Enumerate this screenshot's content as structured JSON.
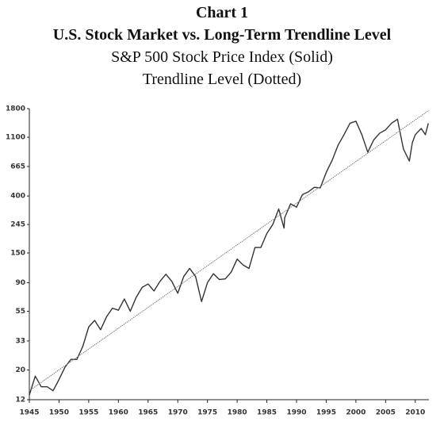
{
  "chart_data": {
    "type": "line",
    "title": "Chart 1",
    "subtitle": [
      "U.S. Stock Market vs. Long-Term Trendline Level",
      "S&P 500 Stock Price Index (Solid)",
      "Trendline Level (Dotted)"
    ],
    "log_scale": true,
    "grid": false,
    "xlim": [
      1945,
      2012.3
    ],
    "xticks": [
      1945,
      1950,
      1955,
      1960,
      1965,
      1970,
      1975,
      1980,
      1985,
      1990,
      1995,
      2000,
      2005,
      2010
    ],
    "ylim": [
      12,
      1800
    ],
    "yticks": [
      12,
      20,
      33,
      55,
      90,
      150,
      245,
      400,
      665,
      1100,
      1800
    ],
    "series": [
      {
        "name": "S&P 500 Stock Price Index",
        "color": "#333333",
        "style": "solid",
        "x": [
          1945,
          1946,
          1947,
          1948,
          1949,
          1950,
          1951,
          1952,
          1953,
          1954,
          1955,
          1956,
          1957,
          1958,
          1959,
          1960,
          1961,
          1962,
          1963,
          1964,
          1965,
          1966,
          1967,
          1968,
          1969,
          1970,
          1971,
          1972,
          1973,
          1974,
          1975,
          1976,
          1977,
          1978,
          1979,
          1980,
          1981,
          1982,
          1983,
          1984,
          1985,
          1986,
          1987,
          1987.9,
          1988,
          1989,
          1990,
          1991,
          1992,
          1993,
          1994,
          1995,
          1996,
          1997,
          1998,
          1999,
          2000,
          2001,
          2002,
          2003,
          2004,
          2005,
          2006,
          2007,
          2008,
          2009,
          2009.5,
          2010,
          2011,
          2011.7,
          2012.2
        ],
        "values": [
          13,
          18,
          15,
          15,
          14,
          17,
          21,
          24,
          24,
          30,
          42,
          47,
          40,
          50,
          58,
          56,
          68,
          55,
          70,
          83,
          88,
          78,
          92,
          104,
          92,
          75,
          100,
          115,
          100,
          65,
          90,
          105,
          95,
          96,
          108,
          135,
          122,
          115,
          165,
          165,
          210,
          245,
          320,
          230,
          275,
          350,
          330,
          410,
          430,
          465,
          460,
          600,
          740,
          960,
          1150,
          1400,
          1450,
          1150,
          850,
          1050,
          1180,
          1250,
          1400,
          1500,
          900,
          730,
          1000,
          1150,
          1280,
          1150,
          1400
        ]
      },
      {
        "name": "Trendline Level",
        "color": "#777777",
        "style": "dotted",
        "x": [
          1945,
          2012.3
        ],
        "values": [
          14,
          1750
        ]
      }
    ]
  }
}
